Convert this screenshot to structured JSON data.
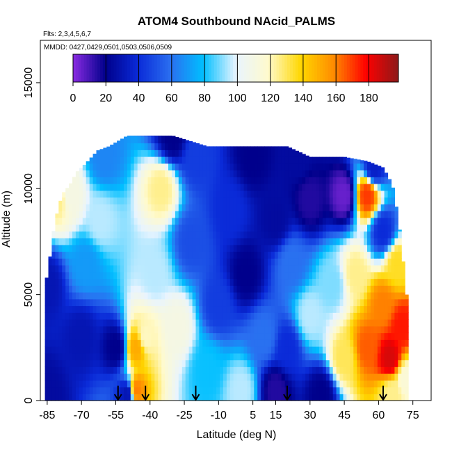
{
  "chart_data": {
    "type": "heatmap",
    "title": "ATOM4 Southbound NAcid_PALMS",
    "flights_note": "Flts: 2,3,4,5,6,7",
    "dates_note": "MMDD: 0427,0429,0501,0503,0506,0509",
    "xlabel": "Latitude (deg N)",
    "ylabel": "Altitude (m)",
    "xlim": [
      -88,
      83
    ],
    "ylim": [
      0,
      17000
    ],
    "x_ticks": [
      -85,
      -70,
      -55,
      -40,
      -25,
      -10,
      5,
      15,
      30,
      45,
      60,
      75
    ],
    "y_ticks": [
      0,
      5000,
      10000,
      15000
    ],
    "colorbar": {
      "min": 0,
      "max": 198,
      "ticks": [
        0,
        20,
        40,
        60,
        80,
        100,
        120,
        140,
        160,
        180
      ],
      "colors": [
        "#8a2be2",
        "#00008b",
        "#0a2ad8",
        "#2a6ff0",
        "#00bfff",
        "#e8f4ff",
        "#fffacd",
        "#ffd700",
        "#ff8c00",
        "#ff0000",
        "#8b1a1a"
      ]
    },
    "profile_markers_lat": [
      -54,
      -42,
      -20,
      20,
      62
    ],
    "column_extents": [
      {
        "lat": -85,
        "top": 5800
      },
      {
        "lat": -82,
        "top": 8200
      },
      {
        "lat": -80,
        "top": 9200
      },
      {
        "lat": -78,
        "top": 9800
      },
      {
        "lat": -75,
        "top": 10200
      },
      {
        "lat": -72,
        "top": 10800
      },
      {
        "lat": -68,
        "top": 11200
      },
      {
        "lat": -63,
        "top": 11800
      },
      {
        "lat": -58,
        "top": 12000
      },
      {
        "lat": -50,
        "top": 12500
      },
      {
        "lat": -30,
        "top": 12500
      },
      {
        "lat": -15,
        "top": 12000
      },
      {
        "lat": 0,
        "top": 12000
      },
      {
        "lat": 20,
        "top": 12000
      },
      {
        "lat": 30,
        "top": 11500
      },
      {
        "lat": 45,
        "top": 11500
      },
      {
        "lat": 55,
        "top": 11300
      },
      {
        "lat": 62,
        "top": 11000
      },
      {
        "lat": 66,
        "top": 10200
      },
      {
        "lat": 68,
        "top": 9000
      },
      {
        "lat": 70,
        "top": 7500
      },
      {
        "lat": 72,
        "top": 5000
      }
    ],
    "field_anchors": [
      {
        "lat": -85,
        "alt": 300,
        "value": 25
      },
      {
        "lat": -85,
        "alt": 5500,
        "value": 30
      },
      {
        "lat": -80,
        "alt": 9500,
        "value": 125
      },
      {
        "lat": -75,
        "alt": 9700,
        "value": 110
      },
      {
        "lat": -70,
        "alt": 3000,
        "value": 30
      },
      {
        "lat": -68,
        "alt": 6500,
        "value": 70
      },
      {
        "lat": -62,
        "alt": 8500,
        "value": 95
      },
      {
        "lat": -60,
        "alt": 11500,
        "value": 65
      },
      {
        "lat": -55,
        "alt": 2500,
        "value": 20
      },
      {
        "lat": -50,
        "alt": 300,
        "value": 30
      },
      {
        "lat": -46,
        "alt": 2500,
        "value": 150
      },
      {
        "lat": -46,
        "alt": 500,
        "value": 160
      },
      {
        "lat": -42,
        "alt": 3000,
        "value": 120
      },
      {
        "lat": -38,
        "alt": 6000,
        "value": 95
      },
      {
        "lat": -35,
        "alt": 10000,
        "value": 125
      },
      {
        "lat": -30,
        "alt": 12500,
        "value": 20
      },
      {
        "lat": -28,
        "alt": 3500,
        "value": 110
      },
      {
        "lat": -22,
        "alt": 7500,
        "value": 50
      },
      {
        "lat": -20,
        "alt": 11500,
        "value": 45
      },
      {
        "lat": -15,
        "alt": 1500,
        "value": 80
      },
      {
        "lat": -10,
        "alt": 4500,
        "value": 45
      },
      {
        "lat": -5,
        "alt": 9000,
        "value": 40
      },
      {
        "lat": 0,
        "alt": 500,
        "value": 95
      },
      {
        "lat": 2,
        "alt": 6000,
        "value": 20
      },
      {
        "lat": 5,
        "alt": 11500,
        "value": 20
      },
      {
        "lat": 10,
        "alt": 3000,
        "value": 60
      },
      {
        "lat": 15,
        "alt": 500,
        "value": 15
      },
      {
        "lat": 15,
        "alt": 8500,
        "value": 25
      },
      {
        "lat": 20,
        "alt": 2500,
        "value": 40
      },
      {
        "lat": 22,
        "alt": 6500,
        "value": 60
      },
      {
        "lat": 25,
        "alt": 11500,
        "value": 25
      },
      {
        "lat": 30,
        "alt": 4000,
        "value": 95
      },
      {
        "lat": 30,
        "alt": 9500,
        "value": 15
      },
      {
        "lat": 35,
        "alt": 300,
        "value": 20
      },
      {
        "lat": 40,
        "alt": 5500,
        "value": 90
      },
      {
        "lat": 45,
        "alt": 2000,
        "value": 130
      },
      {
        "lat": 45,
        "alt": 9700,
        "value": 5
      },
      {
        "lat": 50,
        "alt": 6000,
        "value": 125
      },
      {
        "lat": 55,
        "alt": 2500,
        "value": 165
      },
      {
        "lat": 55,
        "alt": 9700,
        "value": 170
      },
      {
        "lat": 58,
        "alt": 11000,
        "value": 35
      },
      {
        "lat": 62,
        "alt": 4500,
        "value": 160
      },
      {
        "lat": 62,
        "alt": 8000,
        "value": 40
      },
      {
        "lat": 65,
        "alt": 2000,
        "value": 185
      },
      {
        "lat": 66,
        "alt": 300,
        "value": 125
      },
      {
        "lat": 68,
        "alt": 6500,
        "value": 135
      },
      {
        "lat": 70,
        "alt": 3500,
        "value": 175
      },
      {
        "lat": 72,
        "alt": 1000,
        "value": 115
      }
    ]
  }
}
